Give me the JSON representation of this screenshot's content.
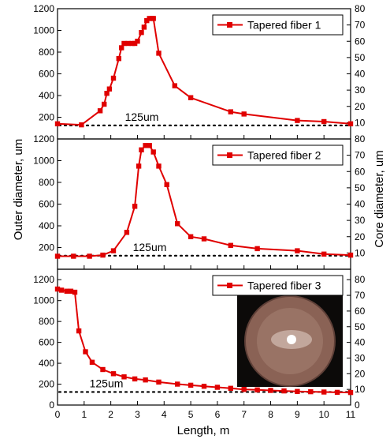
{
  "chart_data": [
    {
      "type": "line",
      "legend": "Tapered fiber 1",
      "legend_position": "top-right",
      "x": [
        0,
        0.9,
        1.6,
        1.75,
        1.85,
        1.95,
        2.1,
        2.3,
        2.4,
        2.5,
        2.65,
        2.8,
        2.9,
        3.0,
        3.15,
        3.25,
        3.35,
        3.45,
        3.55,
        3.6,
        3.8,
        4.4,
        5.0,
        6.5,
        7.0,
        9.0,
        10.0,
        11.0
      ],
      "y": [
        140,
        130,
        260,
        320,
        420,
        460,
        560,
        740,
        840,
        880,
        880,
        880,
        880,
        900,
        980,
        1030,
        1090,
        1110,
        1110,
        1110,
        790,
        490,
        380,
        250,
        230,
        170,
        160,
        140
      ],
      "ylim": [
        0,
        1200
      ],
      "y_ticks": [
        200,
        400,
        600,
        800,
        1000,
        1200
      ],
      "y_ticks_right": [
        10,
        20,
        30,
        40,
        50,
        60,
        70,
        80
      ],
      "reference_line": {
        "y": 125,
        "label": "125um"
      }
    },
    {
      "type": "line",
      "legend": "Tapered fiber 2",
      "legend_position": "top-right",
      "x": [
        0,
        0.6,
        1.2,
        1.7,
        2.1,
        2.6,
        2.9,
        3.05,
        3.15,
        3.3,
        3.45,
        3.6,
        3.8,
        4.1,
        4.5,
        5.0,
        5.5,
        6.5,
        7.5,
        9.0,
        10.0,
        11.0
      ],
      "y": [
        120,
        120,
        120,
        130,
        170,
        340,
        580,
        950,
        1100,
        1140,
        1140,
        1080,
        950,
        780,
        420,
        300,
        280,
        220,
        190,
        170,
        140,
        130
      ],
      "ylim": [
        0,
        1200
      ],
      "y_ticks": [
        200,
        400,
        600,
        800,
        1000,
        1200
      ],
      "y_ticks_right": [
        10,
        20,
        30,
        40,
        50,
        60,
        70,
        80
      ],
      "reference_line": {
        "y": 125,
        "label": "125um"
      }
    },
    {
      "type": "line",
      "legend": "Tapered fiber 3",
      "legend_position": "top-right",
      "x": [
        0,
        0.15,
        0.35,
        0.5,
        0.65,
        0.8,
        1.05,
        1.3,
        1.7,
        2.1,
        2.5,
        2.9,
        3.3,
        3.8,
        4.5,
        5.0,
        5.5,
        6.0,
        6.5,
        7.0,
        7.5,
        8.0,
        8.5,
        9.0,
        9.5,
        10.0,
        10.5,
        11.0
      ],
      "y": [
        1110,
        1100,
        1090,
        1090,
        1080,
        710,
        510,
        410,
        340,
        300,
        270,
        250,
        240,
        220,
        200,
        190,
        180,
        170,
        160,
        150,
        145,
        140,
        135,
        130,
        128,
        125,
        122,
        120
      ],
      "ylim": [
        0,
        1300
      ],
      "y_ticks": [
        0,
        200,
        400,
        600,
        800,
        1000,
        1200
      ],
      "y_ticks_right": [
        0,
        10,
        20,
        30,
        40,
        50,
        60,
        70,
        80
      ],
      "reference_line": {
        "y": 125,
        "label": "125um"
      },
      "inset": "fiber cross-section image"
    }
  ],
  "x_axis": {
    "label": "Length, m",
    "xlim": [
      0,
      11
    ],
    "ticks": [
      0,
      1,
      2,
      3,
      4,
      5,
      6,
      7,
      8,
      9,
      10,
      11
    ]
  },
  "y_axis_left_label": "Outer diameter, um",
  "y_axis_right_label": "Core diameter, um",
  "series_color": "#e00000",
  "reference_line_color": "#000000"
}
